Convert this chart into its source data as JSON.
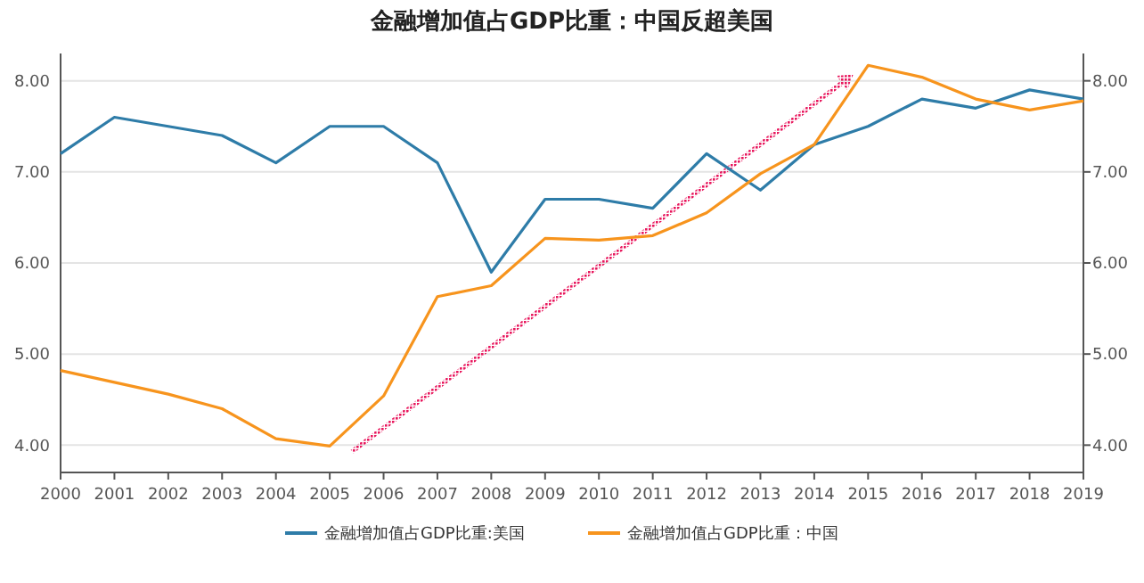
{
  "chart_data": {
    "type": "line",
    "title": "金融增加值占GDP比重：中国反超美国",
    "categories": [
      "2000",
      "2001",
      "2002",
      "2003",
      "2004",
      "2005",
      "2006",
      "2007",
      "2008",
      "2009",
      "2010",
      "2011",
      "2012",
      "2013",
      "2014",
      "2015",
      "2016",
      "2017",
      "2018",
      "2019"
    ],
    "series": [
      {
        "name": "金融增加值占GDP比重:美国",
        "color": "#2e7ca8",
        "values": [
          7.2,
          7.6,
          7.5,
          7.4,
          7.1,
          7.5,
          7.5,
          7.1,
          5.9,
          6.7,
          6.7,
          6.6,
          7.2,
          6.8,
          7.3,
          7.5,
          7.8,
          7.7,
          7.9,
          7.8
        ]
      },
      {
        "name": "金融增加值占GDP比重：中国",
        "color": "#f7941d",
        "values": [
          4.82,
          4.69,
          4.56,
          4.4,
          4.07,
          3.99,
          4.54,
          5.63,
          5.75,
          6.27,
          6.25,
          6.3,
          6.55,
          6.98,
          7.3,
          8.17,
          8.04,
          7.8,
          7.68,
          7.78
        ]
      }
    ],
    "ylim": [
      3.7,
      8.3
    ],
    "yticks": [
      {
        "value": 4,
        "label": "4.00"
      },
      {
        "value": 5,
        "label": "5.00"
      },
      {
        "value": 6,
        "label": "6.00"
      },
      {
        "value": 7,
        "label": "7.00"
      },
      {
        "value": 8,
        "label": "8.00"
      }
    ],
    "y2lim": [
      3.7,
      8.3
    ],
    "y2ticks": [
      {
        "value": 4,
        "label": "4.00"
      },
      {
        "value": 5,
        "label": "5.00"
      },
      {
        "value": 6,
        "label": "6.00"
      },
      {
        "value": 7,
        "label": "7.00"
      },
      {
        "value": 8,
        "label": "8.00"
      }
    ],
    "grid": "y",
    "legend": "bottom",
    "marker": "none",
    "line_style": "solid"
  }
}
